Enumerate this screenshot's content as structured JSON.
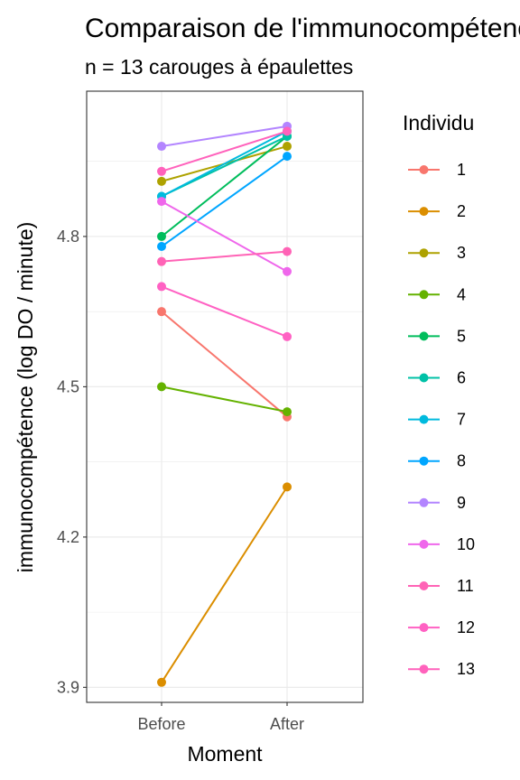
{
  "chart_data": {
    "type": "line",
    "title": "Comparaison de l'immunocompétence",
    "subtitle": "n = 13 carouges à épaulettes",
    "xlabel": "Moment",
    "ylabel": "immunocompétence (log DO / minute)",
    "categories": [
      "Before",
      "After"
    ],
    "y_ticks": [
      "3.9",
      "4.2",
      "4.5",
      "4.8"
    ],
    "ylim": [
      3.87,
      5.09
    ],
    "grid": true,
    "legend_title": "Individu",
    "legend_position": "right",
    "series": [
      {
        "name": "1",
        "color": "#F8766D",
        "values": [
          4.65,
          4.44
        ]
      },
      {
        "name": "2",
        "color": "#DB8E00",
        "values": [
          3.91,
          4.3
        ]
      },
      {
        "name": "3",
        "color": "#AEA200",
        "values": [
          4.91,
          4.98
        ]
      },
      {
        "name": "4",
        "color": "#64B200",
        "values": [
          4.5,
          4.45
        ]
      },
      {
        "name": "5",
        "color": "#00BD5C",
        "values": [
          4.8,
          5.0
        ]
      },
      {
        "name": "6",
        "color": "#00C1A7",
        "values": [
          4.88,
          5.0
        ]
      },
      {
        "name": "7",
        "color": "#00BADE",
        "values": [
          4.88,
          5.01
        ]
      },
      {
        "name": "8",
        "color": "#00A6FF",
        "values": [
          4.78,
          4.96
        ]
      },
      {
        "name": "9",
        "color": "#B385FF",
        "values": [
          4.98,
          5.02
        ]
      },
      {
        "name": "10",
        "color": "#EF67EB",
        "values": [
          4.87,
          4.73
        ]
      },
      {
        "name": "11",
        "color": "#FF63B6",
        "values": [
          4.75,
          4.77
        ]
      },
      {
        "name": "12",
        "color": "#FF61C3",
        "values": [
          4.7,
          4.6
        ]
      },
      {
        "name": "13",
        "color": "#FF62BC",
        "values": [
          4.93,
          5.01
        ]
      }
    ]
  }
}
